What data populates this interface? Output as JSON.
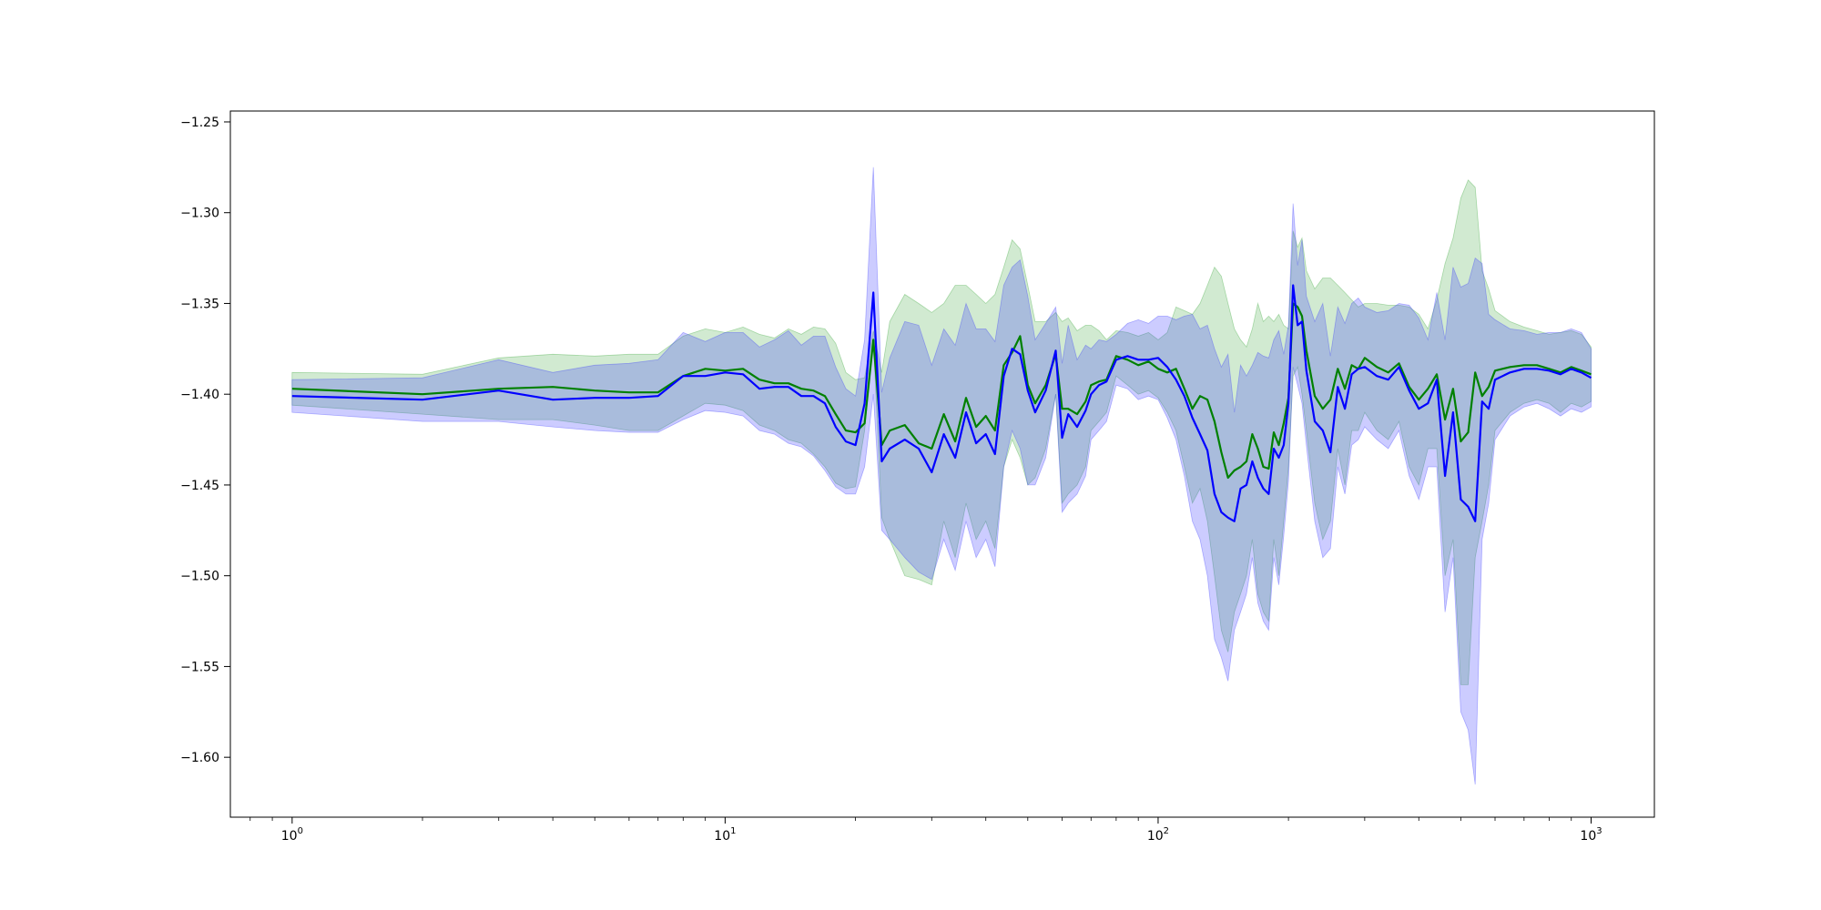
{
  "chart_data": {
    "type": "line",
    "title": "",
    "xlabel": "",
    "ylabel": "",
    "xscale": "log",
    "xlim": [
      0.72,
      1400
    ],
    "ylim": [
      -1.633,
      -1.244
    ],
    "grid": false,
    "legend": "none",
    "xticks": [
      {
        "value": 1,
        "base": "10",
        "exp": "0"
      },
      {
        "value": 10,
        "base": "10",
        "exp": "1"
      },
      {
        "value": 100,
        "base": "10",
        "exp": "2"
      },
      {
        "value": 1000,
        "base": "10",
        "exp": "3"
      }
    ],
    "yticks": [
      {
        "value": -1.25,
        "label": "−1.25"
      },
      {
        "value": -1.3,
        "label": "−1.30"
      },
      {
        "value": -1.35,
        "label": "−1.35"
      },
      {
        "value": -1.4,
        "label": "−1.40"
      },
      {
        "value": -1.45,
        "label": "−1.45"
      },
      {
        "value": -1.5,
        "label": "−1.50"
      },
      {
        "value": -1.55,
        "label": "−1.55"
      },
      {
        "value": -1.6,
        "label": "−1.60"
      }
    ],
    "series": [
      {
        "color": "#008000",
        "band_color": "#2ca02c",
        "band_opacity": 0.22,
        "x": [
          1,
          2,
          3,
          4,
          5,
          6,
          7,
          8,
          9,
          10,
          11,
          12,
          13,
          14,
          15,
          16,
          17,
          18,
          19,
          20,
          21,
          22,
          23,
          24,
          26,
          28,
          30,
          32,
          34,
          36,
          38,
          40,
          42,
          44,
          46,
          48,
          50,
          52,
          55,
          58,
          60,
          62,
          65,
          68,
          70,
          73,
          76,
          80,
          85,
          90,
          95,
          100,
          105,
          110,
          115,
          120,
          125,
          130,
          135,
          140,
          145,
          150,
          155,
          160,
          165,
          170,
          175,
          180,
          185,
          190,
          195,
          200,
          205,
          210,
          215,
          220,
          230,
          240,
          250,
          260,
          270,
          280,
          290,
          300,
          320,
          340,
          360,
          380,
          400,
          420,
          440,
          460,
          480,
          500,
          520,
          540,
          560,
          580,
          600,
          650,
          700,
          750,
          800,
          850,
          900,
          950,
          1000
        ],
        "y": [
          -1.397,
          -1.4,
          -1.397,
          -1.396,
          -1.398,
          -1.399,
          -1.399,
          -1.39,
          -1.386,
          -1.387,
          -1.386,
          -1.392,
          -1.394,
          -1.394,
          -1.397,
          -1.398,
          -1.401,
          -1.411,
          -1.42,
          -1.421,
          -1.416,
          -1.37,
          -1.428,
          -1.42,
          -1.417,
          -1.427,
          -1.43,
          -1.411,
          -1.426,
          -1.402,
          -1.418,
          -1.412,
          -1.42,
          -1.384,
          -1.377,
          -1.368,
          -1.395,
          -1.405,
          -1.395,
          -1.378,
          -1.408,
          -1.408,
          -1.411,
          -1.404,
          -1.395,
          -1.393,
          -1.392,
          -1.379,
          -1.381,
          -1.384,
          -1.382,
          -1.386,
          -1.388,
          -1.386,
          -1.397,
          -1.408,
          -1.401,
          -1.403,
          -1.415,
          -1.432,
          -1.446,
          -1.442,
          -1.44,
          -1.437,
          -1.422,
          -1.43,
          -1.44,
          -1.441,
          -1.421,
          -1.428,
          -1.416,
          -1.402,
          -1.35,
          -1.352,
          -1.357,
          -1.376,
          -1.401,
          -1.408,
          -1.403,
          -1.386,
          -1.397,
          -1.384,
          -1.386,
          -1.38,
          -1.385,
          -1.388,
          -1.383,
          -1.396,
          -1.403,
          -1.397,
          -1.389,
          -1.414,
          -1.397,
          -1.426,
          -1.421,
          -1.388,
          -1.401,
          -1.396,
          -1.387,
          -1.385,
          -1.384,
          -1.384,
          -1.386,
          -1.388,
          -1.385,
          -1.387,
          -1.389
        ],
        "lower": [
          -1.406,
          -1.411,
          -1.414,
          -1.414,
          -1.417,
          -1.42,
          -1.42,
          -1.412,
          -1.405,
          -1.406,
          -1.409,
          -1.417,
          -1.42,
          -1.425,
          -1.427,
          -1.433,
          -1.44,
          -1.449,
          -1.452,
          -1.451,
          -1.42,
          -1.37,
          -1.468,
          -1.48,
          -1.5,
          -1.502,
          -1.505,
          -1.47,
          -1.49,
          -1.46,
          -1.48,
          -1.47,
          -1.485,
          -1.44,
          -1.425,
          -1.435,
          -1.45,
          -1.446,
          -1.43,
          -1.4,
          -1.46,
          -1.455,
          -1.45,
          -1.44,
          -1.42,
          -1.415,
          -1.41,
          -1.39,
          -1.395,
          -1.4,
          -1.398,
          -1.402,
          -1.41,
          -1.42,
          -1.44,
          -1.46,
          -1.452,
          -1.47,
          -1.5,
          -1.53,
          -1.542,
          -1.52,
          -1.51,
          -1.5,
          -1.48,
          -1.51,
          -1.52,
          -1.525,
          -1.48,
          -1.5,
          -1.47,
          -1.44,
          -1.39,
          -1.385,
          -1.4,
          -1.42,
          -1.46,
          -1.48,
          -1.47,
          -1.43,
          -1.45,
          -1.42,
          -1.42,
          -1.41,
          -1.42,
          -1.425,
          -1.415,
          -1.44,
          -1.45,
          -1.43,
          -1.43,
          -1.5,
          -1.48,
          -1.56,
          -1.56,
          -1.49,
          -1.47,
          -1.45,
          -1.42,
          -1.41,
          -1.405,
          -1.403,
          -1.405,
          -1.41,
          -1.405,
          -1.407,
          -1.404
        ],
        "upper": [
          -1.388,
          -1.389,
          -1.38,
          -1.378,
          -1.379,
          -1.378,
          -1.378,
          -1.368,
          -1.364,
          -1.366,
          -1.363,
          -1.367,
          -1.369,
          -1.364,
          -1.367,
          -1.363,
          -1.364,
          -1.372,
          -1.388,
          -1.392,
          -1.391,
          -1.365,
          -1.388,
          -1.36,
          -1.345,
          -1.35,
          -1.355,
          -1.35,
          -1.34,
          -1.34,
          -1.345,
          -1.35,
          -1.345,
          -1.33,
          -1.315,
          -1.32,
          -1.34,
          -1.36,
          -1.36,
          -1.355,
          -1.36,
          -1.358,
          -1.365,
          -1.362,
          -1.362,
          -1.365,
          -1.37,
          -1.365,
          -1.366,
          -1.368,
          -1.366,
          -1.37,
          -1.366,
          -1.352,
          -1.354,
          -1.356,
          -1.35,
          -1.34,
          -1.33,
          -1.335,
          -1.35,
          -1.364,
          -1.37,
          -1.374,
          -1.364,
          -1.35,
          -1.36,
          -1.357,
          -1.36,
          -1.356,
          -1.362,
          -1.364,
          -1.31,
          -1.319,
          -1.314,
          -1.332,
          -1.342,
          -1.336,
          -1.336,
          -1.34,
          -1.344,
          -1.348,
          -1.352,
          -1.35,
          -1.35,
          -1.351,
          -1.351,
          -1.352,
          -1.356,
          -1.364,
          -1.348,
          -1.328,
          -1.314,
          -1.292,
          -1.282,
          -1.286,
          -1.332,
          -1.342,
          -1.354,
          -1.36,
          -1.363,
          -1.365,
          -1.367,
          -1.366,
          -1.365,
          -1.367,
          -1.374
        ]
      },
      {
        "color": "#0000ff",
        "band_color": "#3333ff",
        "band_opacity": 0.25,
        "x": [
          1,
          2,
          3,
          4,
          5,
          6,
          7,
          8,
          9,
          10,
          11,
          12,
          13,
          14,
          15,
          16,
          17,
          18,
          19,
          20,
          21,
          22,
          23,
          24,
          26,
          28,
          30,
          32,
          34,
          36,
          38,
          40,
          42,
          44,
          46,
          48,
          50,
          52,
          55,
          58,
          60,
          62,
          65,
          68,
          70,
          73,
          76,
          80,
          85,
          90,
          95,
          100,
          105,
          110,
          115,
          120,
          125,
          130,
          135,
          140,
          145,
          150,
          155,
          160,
          165,
          170,
          175,
          180,
          185,
          190,
          195,
          200,
          205,
          210,
          215,
          220,
          230,
          240,
          250,
          260,
          270,
          280,
          290,
          300,
          320,
          340,
          360,
          380,
          400,
          420,
          440,
          460,
          480,
          500,
          520,
          540,
          560,
          580,
          600,
          650,
          700,
          750,
          800,
          850,
          900,
          950,
          1000
        ],
        "y": [
          -1.401,
          -1.403,
          -1.398,
          -1.403,
          -1.402,
          -1.402,
          -1.401,
          -1.39,
          -1.39,
          -1.388,
          -1.389,
          -1.397,
          -1.396,
          -1.396,
          -1.401,
          -1.401,
          -1.405,
          -1.418,
          -1.426,
          -1.428,
          -1.405,
          -1.344,
          -1.437,
          -1.43,
          -1.425,
          -1.43,
          -1.443,
          -1.422,
          -1.435,
          -1.41,
          -1.427,
          -1.422,
          -1.433,
          -1.39,
          -1.375,
          -1.378,
          -1.398,
          -1.41,
          -1.398,
          -1.376,
          -1.424,
          -1.411,
          -1.418,
          -1.409,
          -1.4,
          -1.395,
          -1.393,
          -1.381,
          -1.379,
          -1.381,
          -1.381,
          -1.38,
          -1.385,
          -1.392,
          -1.401,
          -1.413,
          -1.422,
          -1.431,
          -1.455,
          -1.465,
          -1.468,
          -1.47,
          -1.452,
          -1.45,
          -1.437,
          -1.446,
          -1.452,
          -1.455,
          -1.43,
          -1.435,
          -1.428,
          -1.405,
          -1.34,
          -1.362,
          -1.36,
          -1.387,
          -1.415,
          -1.42,
          -1.432,
          -1.396,
          -1.408,
          -1.389,
          -1.386,
          -1.385,
          -1.39,
          -1.392,
          -1.385,
          -1.398,
          -1.408,
          -1.405,
          -1.392,
          -1.445,
          -1.41,
          -1.458,
          -1.462,
          -1.47,
          -1.404,
          -1.408,
          -1.392,
          -1.388,
          -1.386,
          -1.386,
          -1.387,
          -1.389,
          -1.386,
          -1.388,
          -1.391
        ],
        "lower": [
          -1.41,
          -1.415,
          -1.415,
          -1.418,
          -1.42,
          -1.421,
          -1.421,
          -1.414,
          -1.409,
          -1.41,
          -1.412,
          -1.42,
          -1.422,
          -1.427,
          -1.429,
          -1.434,
          -1.442,
          -1.451,
          -1.455,
          -1.455,
          -1.44,
          -1.4,
          -1.475,
          -1.48,
          -1.49,
          -1.498,
          -1.502,
          -1.48,
          -1.497,
          -1.47,
          -1.49,
          -1.48,
          -1.495,
          -1.44,
          -1.42,
          -1.43,
          -1.45,
          -1.45,
          -1.435,
          -1.4,
          -1.465,
          -1.46,
          -1.455,
          -1.445,
          -1.425,
          -1.42,
          -1.415,
          -1.395,
          -1.397,
          -1.403,
          -1.401,
          -1.403,
          -1.413,
          -1.425,
          -1.445,
          -1.47,
          -1.48,
          -1.5,
          -1.535,
          -1.545,
          -1.558,
          -1.53,
          -1.52,
          -1.51,
          -1.49,
          -1.515,
          -1.525,
          -1.53,
          -1.49,
          -1.505,
          -1.478,
          -1.448,
          -1.385,
          -1.395,
          -1.405,
          -1.428,
          -1.47,
          -1.49,
          -1.485,
          -1.44,
          -1.455,
          -1.428,
          -1.425,
          -1.418,
          -1.425,
          -1.43,
          -1.42,
          -1.445,
          -1.458,
          -1.44,
          -1.44,
          -1.52,
          -1.49,
          -1.575,
          -1.585,
          -1.615,
          -1.48,
          -1.46,
          -1.425,
          -1.412,
          -1.407,
          -1.405,
          -1.408,
          -1.412,
          -1.408,
          -1.41,
          -1.407
        ],
        "upper": [
          -1.392,
          -1.391,
          -1.381,
          -1.388,
          -1.384,
          -1.383,
          -1.381,
          -1.366,
          -1.371,
          -1.366,
          -1.366,
          -1.374,
          -1.37,
          -1.365,
          -1.373,
          -1.368,
          -1.368,
          -1.385,
          -1.397,
          -1.401,
          -1.37,
          -1.275,
          -1.399,
          -1.38,
          -1.36,
          -1.362,
          -1.384,
          -1.364,
          -1.373,
          -1.35,
          -1.364,
          -1.364,
          -1.371,
          -1.34,
          -1.33,
          -1.326,
          -1.346,
          -1.37,
          -1.361,
          -1.352,
          -1.383,
          -1.362,
          -1.381,
          -1.373,
          -1.375,
          -1.37,
          -1.371,
          -1.367,
          -1.361,
          -1.359,
          -1.361,
          -1.357,
          -1.357,
          -1.359,
          -1.357,
          -1.356,
          -1.364,
          -1.362,
          -1.375,
          -1.385,
          -1.378,
          -1.41,
          -1.384,
          -1.39,
          -1.384,
          -1.377,
          -1.379,
          -1.38,
          -1.37,
          -1.365,
          -1.378,
          -1.362,
          -1.295,
          -1.329,
          -1.315,
          -1.346,
          -1.36,
          -1.35,
          -1.379,
          -1.352,
          -1.361,
          -1.35,
          -1.347,
          -1.352,
          -1.355,
          -1.354,
          -1.35,
          -1.351,
          -1.358,
          -1.37,
          -1.344,
          -1.37,
          -1.33,
          -1.341,
          -1.339,
          -1.325,
          -1.328,
          -1.356,
          -1.359,
          -1.364,
          -1.365,
          -1.367,
          -1.366,
          -1.366,
          -1.364,
          -1.366,
          -1.375
        ]
      }
    ]
  }
}
